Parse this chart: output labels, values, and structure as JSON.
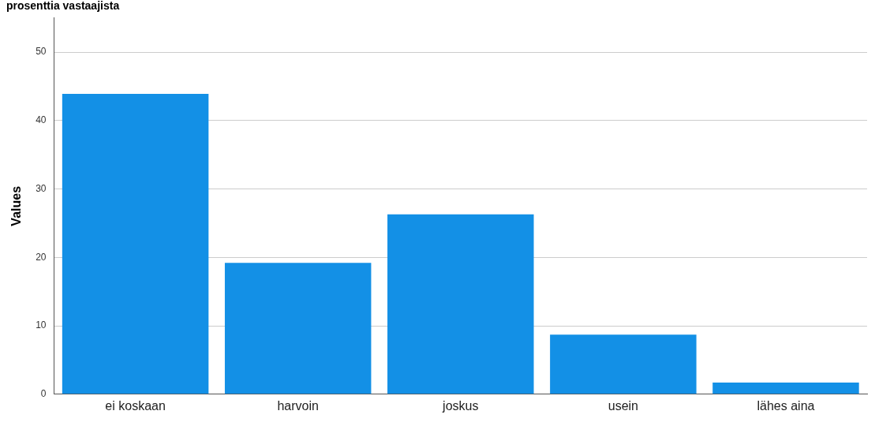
{
  "chart_data": {
    "type": "bar",
    "title": "prosenttia vastaajista",
    "ylabel": "Values",
    "categories": [
      "ei koskaan",
      "harvoin",
      "joskus",
      "usein",
      "lähes aina"
    ],
    "values": [
      43.9,
      19.2,
      26.3,
      8.7,
      1.7
    ],
    "color": "#1390e6",
    "ylim": [
      0,
      55
    ],
    "yticks": [
      0,
      10,
      20,
      30,
      40,
      50
    ],
    "grid": "y",
    "legend": false
  }
}
